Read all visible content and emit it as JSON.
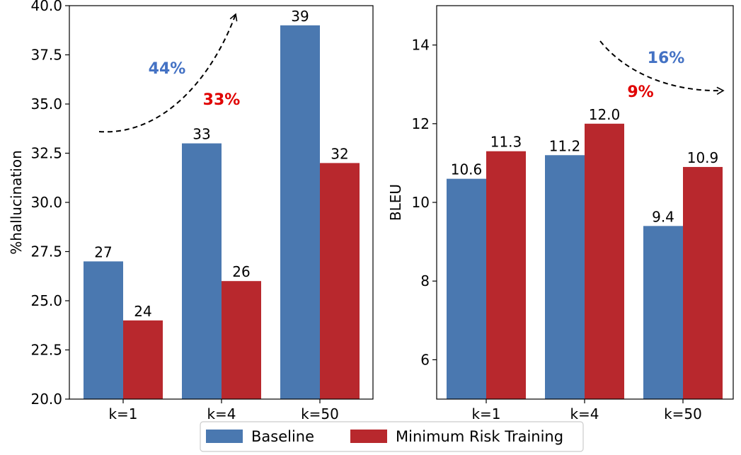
{
  "legend": {
    "placement": "bottom-center",
    "entries": [
      {
        "label": "Baseline",
        "color": "#4a78b0"
      },
      {
        "label": "Minimum Risk Training",
        "color": "#b8282d"
      }
    ]
  },
  "colors": {
    "baseline": "#4a78b0",
    "mrt": "#b8282d",
    "blue_annotation": "#4472c4",
    "red_annotation": "#e00000"
  },
  "chart_data": [
    {
      "type": "bar",
      "categories": [
        "k=1",
        "k=4",
        "k=50"
      ],
      "series": [
        {
          "name": "Baseline",
          "values": [
            27,
            33,
            39
          ],
          "labels": [
            "27",
            "33",
            "39"
          ]
        },
        {
          "name": "Minimum Risk Training",
          "values": [
            24,
            26,
            32
          ],
          "labels": [
            "24",
            "26",
            "32"
          ]
        }
      ],
      "ylabel": "%hallucination",
      "xlabel": "",
      "ylim": [
        20,
        40
      ],
      "yticks": [
        "20.0",
        "22.5",
        "25.0",
        "27.5",
        "30.0",
        "32.5",
        "35.0",
        "37.5",
        "40.0"
      ],
      "annotations": [
        {
          "text": "44%",
          "color": "#4472c4"
        },
        {
          "text": "33%",
          "color": "#e00000"
        }
      ],
      "arrow": "curved dashed arrow rising upward"
    },
    {
      "type": "bar",
      "categories": [
        "k=1",
        "k=4",
        "k=50"
      ],
      "series": [
        {
          "name": "Baseline",
          "values": [
            10.6,
            11.2,
            9.4
          ],
          "labels": [
            "10.6",
            "11.2",
            "9.4"
          ]
        },
        {
          "name": "Minimum Risk Training",
          "values": [
            11.3,
            12.0,
            10.9
          ],
          "labels": [
            "11.3",
            "12.0",
            "10.9"
          ]
        }
      ],
      "ylabel": "BLEU",
      "xlabel": "",
      "ylim": [
        5,
        15
      ],
      "yticks": [
        "6",
        "8",
        "10",
        "12",
        "14"
      ],
      "annotations": [
        {
          "text": "16%",
          "color": "#4472c4"
        },
        {
          "text": "9%",
          "color": "#e00000"
        }
      ],
      "arrow": "curved dashed arrow descending to the right"
    }
  ]
}
